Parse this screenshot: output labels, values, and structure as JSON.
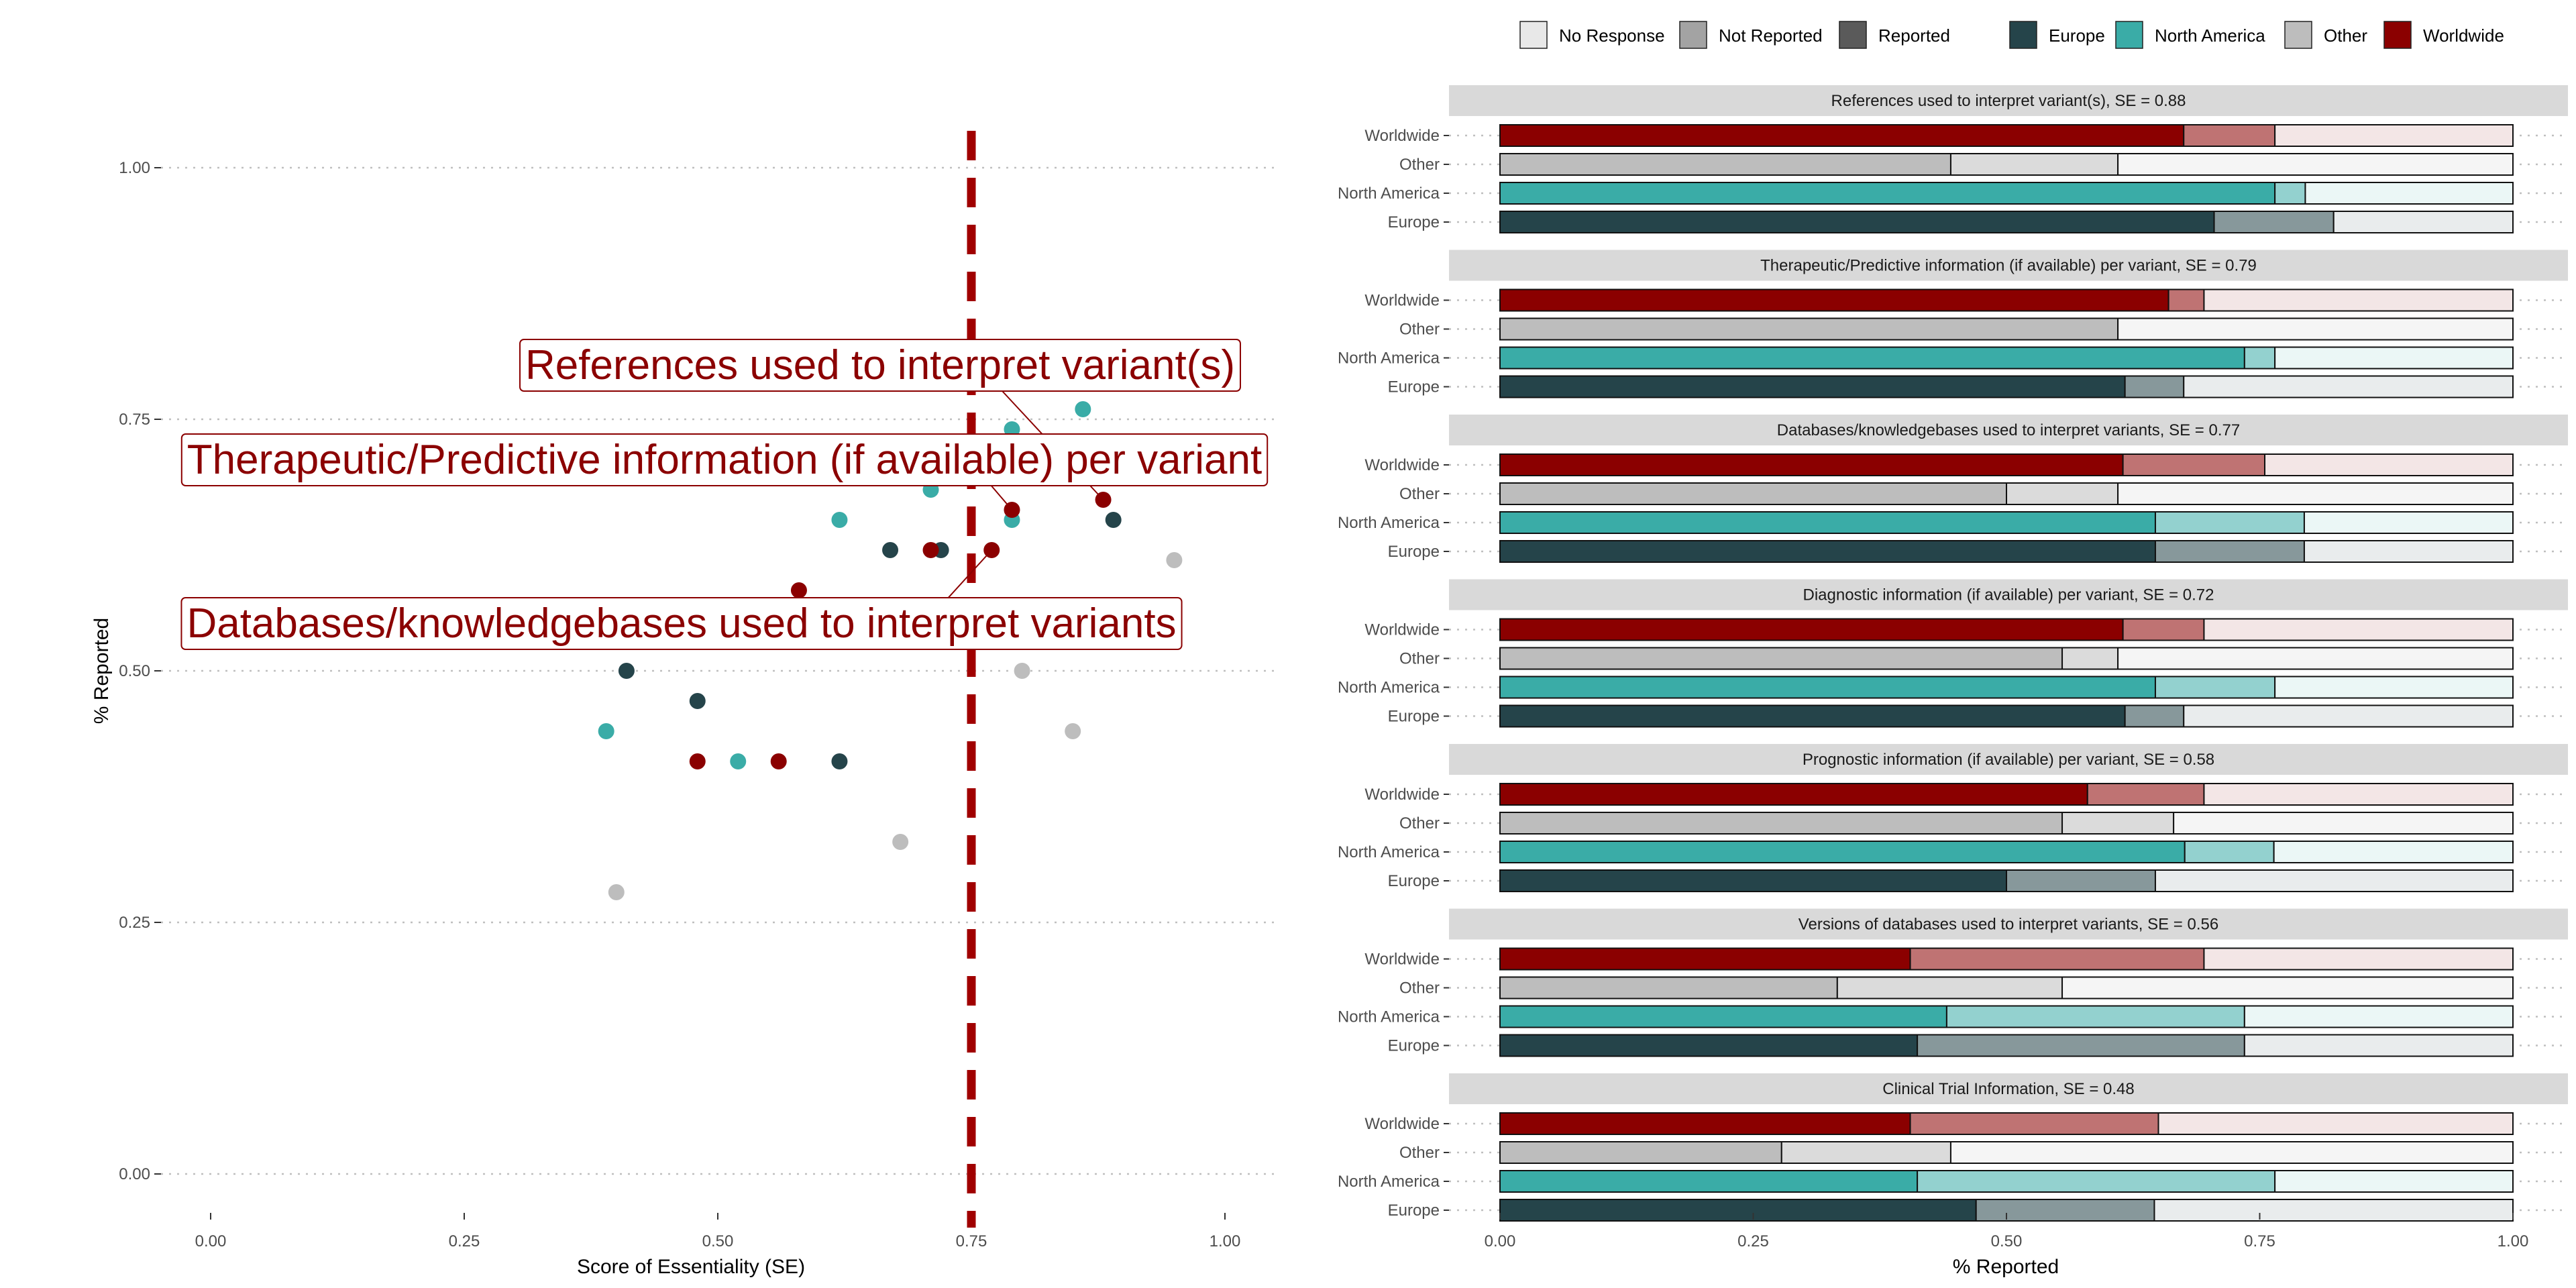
{
  "colors": {
    "Europe": "#25444a",
    "North America": "#3aaca7",
    "Other": "#bdbdbd",
    "Worldwide": "#8b0000",
    "callout": "#8b0000",
    "threshold_line": "#a00000",
    "strip_bg": "#d9d9d9",
    "grid": "#bfbfbf"
  },
  "legend": {
    "status": [
      {
        "label": "No Response",
        "color": "#e8e8e8"
      },
      {
        "label": "Not Reported",
        "color": "#a3a3a3"
      },
      {
        "label": "Reported",
        "color": "#5a5a5a"
      }
    ],
    "regions": [
      {
        "label": "Europe",
        "color": "#25444a"
      },
      {
        "label": "North America",
        "color": "#3aaca7"
      },
      {
        "label": "Other",
        "color": "#bdbdbd"
      },
      {
        "label": "Worldwide",
        "color": "#8b0000"
      }
    ]
  },
  "chart_data": [
    {
      "type": "scatter",
      "xlabel": "Score of Essentiality (SE)",
      "ylabel": "% Reported",
      "xlim": [
        0,
        1
      ],
      "ylim": [
        0,
        1
      ],
      "xticks": [
        "0.00",
        "0.25",
        "0.50",
        "0.75",
        "1.00"
      ],
      "yticks": [
        "0.00",
        "0.25",
        "0.50",
        "0.75",
        "1.00"
      ],
      "threshold_x": 0.75,
      "series": [
        {
          "name": "Europe",
          "points": [
            [
              0.41,
              0.5
            ],
            [
              0.48,
              0.47
            ],
            [
              0.62,
              0.41
            ],
            [
              0.67,
              0.62
            ],
            [
              0.72,
              0.62
            ],
            [
              0.89,
              0.65
            ]
          ]
        },
        {
          "name": "North America",
          "points": [
            [
              0.39,
              0.44
            ],
            [
              0.52,
              0.41
            ],
            [
              0.62,
              0.65
            ],
            [
              0.71,
              0.68
            ],
            [
              0.79,
              0.74
            ],
            [
              0.79,
              0.65
            ],
            [
              0.86,
              0.76
            ]
          ]
        },
        {
          "name": "Other",
          "points": [
            [
              0.4,
              0.28
            ],
            [
              0.68,
              0.33
            ],
            [
              0.8,
              0.5
            ],
            [
              0.85,
              0.44
            ],
            [
              0.95,
              0.61
            ]
          ]
        },
        {
          "name": "Worldwide",
          "points": [
            [
              0.48,
              0.41
            ],
            [
              0.56,
              0.41
            ],
            [
              0.58,
              0.58
            ],
            [
              0.71,
              0.62
            ],
            [
              0.77,
              0.62
            ],
            [
              0.79,
              0.66
            ],
            [
              0.88,
              0.67
            ]
          ]
        }
      ],
      "annotations": [
        {
          "label": "References used to interpret variant(s)",
          "point": [
            0.88,
            0.67
          ]
        },
        {
          "label": "Therapeutic/Predictive information (if available) per variant",
          "point": [
            0.79,
            0.66
          ]
        },
        {
          "label": "Databases/knowledgebases used to interpret variants",
          "point": [
            0.77,
            0.62
          ]
        }
      ]
    },
    {
      "type": "bar",
      "orientation": "horizontal",
      "stacked": true,
      "xlabel": "% Reported",
      "xlim": [
        0,
        1
      ],
      "xticks": [
        "0.00",
        "0.25",
        "0.50",
        "0.75",
        "1.00"
      ],
      "categories": [
        "Worldwide",
        "Other",
        "North America",
        "Europe"
      ],
      "stack_order": [
        "Reported",
        "Not Reported",
        "No Response"
      ],
      "facets": [
        {
          "title": "References used to interpret variant(s), SE = 0.88",
          "rows": [
            {
              "region": "Worldwide",
              "reported": 0.675,
              "not_reported": 0.09,
              "no_response": 0.235
            },
            {
              "region": "Other",
              "reported": 0.445,
              "not_reported": 0.165,
              "no_response": 0.39
            },
            {
              "region": "North America",
              "reported": 0.765,
              "not_reported": 0.03,
              "no_response": 0.205
            },
            {
              "region": "Europe",
              "reported": 0.705,
              "not_reported": 0.118,
              "no_response": 0.177
            }
          ]
        },
        {
          "title": "Therapeutic/Predictive information (if available) per variant, SE = 0.79",
          "rows": [
            {
              "region": "Worldwide",
              "reported": 0.66,
              "not_reported": 0.035,
              "no_response": 0.305
            },
            {
              "region": "Other",
              "reported": 0.61,
              "not_reported": 0.0,
              "no_response": 0.39
            },
            {
              "region": "North America",
              "reported": 0.735,
              "not_reported": 0.03,
              "no_response": 0.235
            },
            {
              "region": "Europe",
              "reported": 0.617,
              "not_reported": 0.058,
              "no_response": 0.325
            }
          ]
        },
        {
          "title": "Databases/knowledgebases used to interpret variants, SE = 0.77",
          "rows": [
            {
              "region": "Worldwide",
              "reported": 0.615,
              "not_reported": 0.14,
              "no_response": 0.245
            },
            {
              "region": "Other",
              "reported": 0.5,
              "not_reported": 0.11,
              "no_response": 0.39
            },
            {
              "region": "North America",
              "reported": 0.647,
              "not_reported": 0.147,
              "no_response": 0.206
            },
            {
              "region": "Europe",
              "reported": 0.647,
              "not_reported": 0.147,
              "no_response": 0.206
            }
          ]
        },
        {
          "title": "Diagnostic information (if available) per variant, SE = 0.72",
          "rows": [
            {
              "region": "Worldwide",
              "reported": 0.615,
              "not_reported": 0.08,
              "no_response": 0.305
            },
            {
              "region": "Other",
              "reported": 0.555,
              "not_reported": 0.055,
              "no_response": 0.39
            },
            {
              "region": "North America",
              "reported": 0.647,
              "not_reported": 0.118,
              "no_response": 0.235
            },
            {
              "region": "Europe",
              "reported": 0.617,
              "not_reported": 0.058,
              "no_response": 0.325
            }
          ]
        },
        {
          "title": "Prognostic information (if available) per variant, SE = 0.58",
          "rows": [
            {
              "region": "Worldwide",
              "reported": 0.58,
              "not_reported": 0.115,
              "no_response": 0.305
            },
            {
              "region": "Other",
              "reported": 0.555,
              "not_reported": 0.11,
              "no_response": 0.335
            },
            {
              "region": "North America",
              "reported": 0.676,
              "not_reported": 0.088,
              "no_response": 0.236
            },
            {
              "region": "Europe",
              "reported": 0.5,
              "not_reported": 0.147,
              "no_response": 0.353
            }
          ]
        },
        {
          "title": "Versions of databases used to interpret variants, SE = 0.56",
          "rows": [
            {
              "region": "Worldwide",
              "reported": 0.405,
              "not_reported": 0.29,
              "no_response": 0.305
            },
            {
              "region": "Other",
              "reported": 0.333,
              "not_reported": 0.222,
              "no_response": 0.445
            },
            {
              "region": "North America",
              "reported": 0.441,
              "not_reported": 0.294,
              "no_response": 0.265
            },
            {
              "region": "Europe",
              "reported": 0.412,
              "not_reported": 0.323,
              "no_response": 0.265
            }
          ]
        },
        {
          "title": "Clinical Trial Information, SE = 0.48",
          "rows": [
            {
              "region": "Worldwide",
              "reported": 0.405,
              "not_reported": 0.245,
              "no_response": 0.35
            },
            {
              "region": "Other",
              "reported": 0.278,
              "not_reported": 0.167,
              "no_response": 0.555
            },
            {
              "region": "North America",
              "reported": 0.412,
              "not_reported": 0.353,
              "no_response": 0.235
            },
            {
              "region": "Europe",
              "reported": 0.47,
              "not_reported": 0.176,
              "no_response": 0.354
            }
          ]
        }
      ]
    }
  ]
}
